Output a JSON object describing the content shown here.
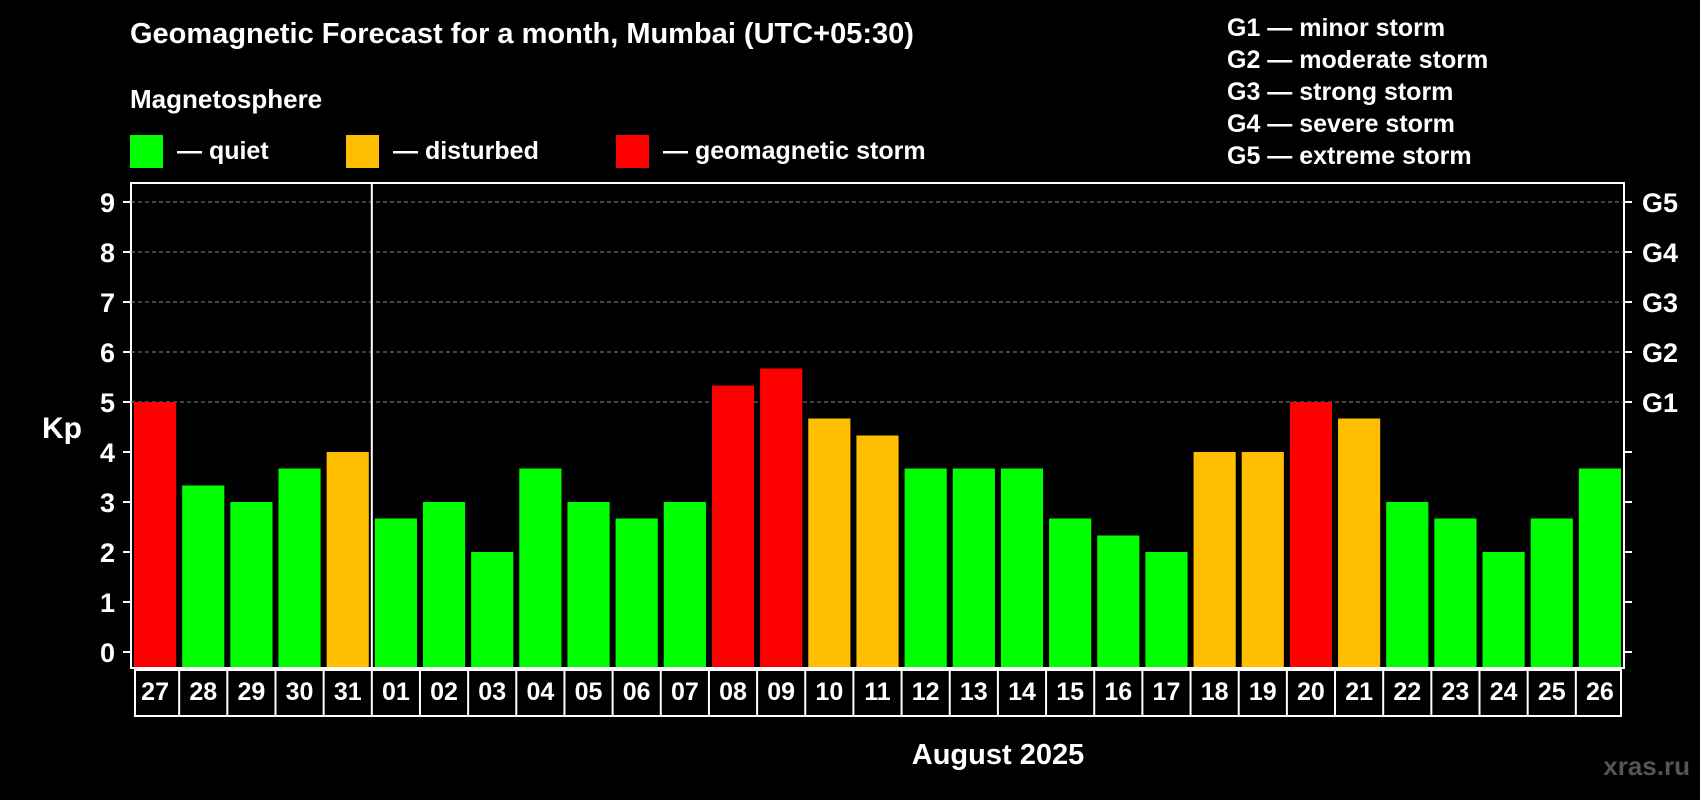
{
  "header": {
    "title": "Geomagnetic Forecast for a month, Mumbai (UTC+05:30)",
    "subtitle": "Magnetosphere"
  },
  "legend": [
    {
      "label": "— quiet",
      "color": "#00ff00"
    },
    {
      "label": "— disturbed",
      "color": "#ffbf00"
    },
    {
      "label": "— geomagnetic storm",
      "color": "#ff0000"
    }
  ],
  "storm_levels": [
    "G1 — minor storm",
    "G2 — moderate storm",
    "G3 — strong storm",
    "G4 — severe storm",
    "G5 — extreme storm"
  ],
  "watermark": "xras.ru",
  "chart_data": {
    "type": "bar",
    "title": "Geomagnetic Forecast for a month, Mumbai (UTC+05:30)",
    "ylabel": "Kp",
    "xlabel": "August 2025",
    "ylim": [
      0,
      9
    ],
    "yticks": [
      "0",
      "1",
      "2",
      "3",
      "4",
      "5",
      "6",
      "7",
      "8",
      "9"
    ],
    "right_axis": [
      {
        "value": 5,
        "label": "G1"
      },
      {
        "value": 6,
        "label": "G2"
      },
      {
        "value": 7,
        "label": "G3"
      },
      {
        "value": 8,
        "label": "G4"
      },
      {
        "value": 9,
        "label": "G5"
      }
    ],
    "grid": "dashed horizontal at Kp 5-9",
    "month_divider_after_index": 4,
    "categories": [
      "27",
      "28",
      "29",
      "30",
      "31",
      "01",
      "02",
      "03",
      "04",
      "05",
      "06",
      "07",
      "08",
      "09",
      "10",
      "11",
      "12",
      "13",
      "14",
      "15",
      "16",
      "17",
      "18",
      "19",
      "20",
      "21",
      "22",
      "23",
      "24",
      "25",
      "26"
    ],
    "values": [
      5,
      3.33,
      3,
      3.67,
      4,
      2.67,
      3,
      2,
      3.67,
      3,
      2.67,
      3,
      5.33,
      5.67,
      4.67,
      4.33,
      3.67,
      3.67,
      3.67,
      2.67,
      2.33,
      2,
      4,
      4,
      5,
      4.67,
      3,
      2.67,
      2,
      2.67,
      3.67
    ],
    "colors": {
      "quiet": "#00ff00",
      "disturbed": "#ffbf00",
      "storm": "#ff0000"
    },
    "levels": [
      "storm",
      "quiet",
      "quiet",
      "quiet",
      "disturbed",
      "quiet",
      "quiet",
      "quiet",
      "quiet",
      "quiet",
      "quiet",
      "quiet",
      "storm",
      "storm",
      "disturbed",
      "disturbed",
      "quiet",
      "quiet",
      "quiet",
      "quiet",
      "quiet",
      "quiet",
      "disturbed",
      "disturbed",
      "storm",
      "disturbed",
      "quiet",
      "quiet",
      "quiet",
      "quiet",
      "quiet"
    ]
  }
}
